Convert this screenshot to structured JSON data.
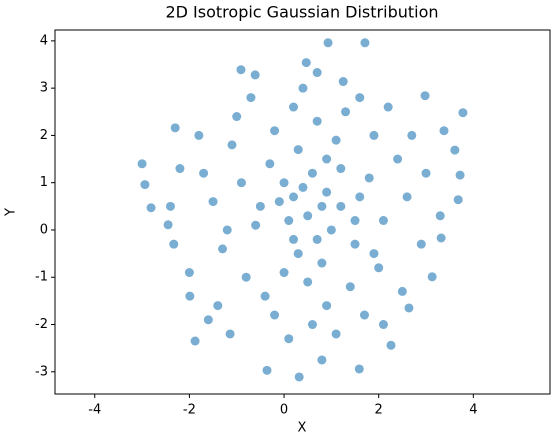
{
  "chart_data": {
    "type": "scatter",
    "title": "2D Isotropic Gaussian Distribution",
    "x_label": "X",
    "y_label": "Y",
    "color": "#1f77b4",
    "alpha": 0.6,
    "grid": false,
    "xlim": [
      -4.84,
      5.62
    ],
    "ylim": [
      -3.47,
      4.23
    ],
    "xticks": [
      -4,
      -2,
      0,
      2,
      4
    ],
    "yticks": [
      -3,
      -2,
      -1,
      0,
      1,
      2,
      3,
      4
    ],
    "x": [
      0.93,
      1.71,
      0.47,
      -0.91,
      -0.61,
      0.7,
      1.25,
      2.98,
      3.78,
      -3.0,
      -2.94,
      -2.81,
      -2.45,
      -2.33,
      -2.3,
      3.38,
      3.61,
      3.72,
      3.68,
      3.32,
      3.13,
      -1.88,
      -0.36,
      0.32,
      0.8,
      1.59,
      2.26,
      2.64,
      -1.99,
      -1.14,
      0.5,
      0.9,
      0.2,
      1.2,
      0.6,
      -0.1,
      1.5,
      0.8,
      0.3,
      1.8,
      -0.6,
      0.0,
      1.1,
      2.1,
      -0.9,
      0.7,
      1.4,
      -0.4,
      2.4,
      -1.3,
      0.4,
      1.0,
      0.1,
      1.6,
      -0.3,
      0.9,
      2.0,
      -1.1,
      0.2,
      1.3,
      -1.5,
      2.6,
      0.6,
      -0.8,
      1.9,
      -1.7,
      2.9,
      0.5,
      -0.2,
      1.7,
      -2.0,
      2.2,
      -1.0,
      0.0,
      1.2,
      0.8,
      0.3,
      -0.5,
      1.5,
      0.7,
      2.5,
      -1.8,
      -2.2,
      3.0,
      -1.4,
      0.1,
      1.1,
      2.7,
      -0.7,
      1.6,
      -2.4,
      3.3,
      -1.6,
      2.1,
      0.4,
      -0.2,
      1.9,
      -1.2,
      0.9,
      0.2
    ],
    "y": [
      3.96,
      3.96,
      3.54,
      3.39,
      3.28,
      3.33,
      3.14,
      2.84,
      2.48,
      1.4,
      0.96,
      0.47,
      0.11,
      -0.3,
      2.16,
      2.1,
      1.69,
      1.16,
      0.64,
      -0.17,
      -0.99,
      -2.35,
      -2.97,
      -3.11,
      -2.75,
      -2.94,
      -2.44,
      -1.65,
      -1.4,
      -2.2,
      0.3,
      0.8,
      -0.2,
      0.5,
      1.2,
      0.6,
      -0.3,
      -0.7,
      1.7,
      1.1,
      0.1,
      -0.9,
      1.9,
      0.2,
      1.0,
      2.3,
      -1.2,
      -1.4,
      1.5,
      -0.4,
      0.9,
      0.0,
      0.2,
      0.7,
      1.4,
      -1.6,
      -0.8,
      1.8,
      2.6,
      2.5,
      0.6,
      0.7,
      -2.0,
      -1.0,
      2.0,
      1.2,
      -0.3,
      -1.1,
      2.1,
      -1.8,
      -0.9,
      2.6,
      2.4,
      1.0,
      1.3,
      0.5,
      -0.5,
      0.5,
      0.2,
      -0.2,
      -1.3,
      2.0,
      1.3,
      1.2,
      -1.6,
      -2.3,
      -2.2,
      2.0,
      2.8,
      2.8,
      0.5,
      0.3,
      -1.9,
      -2.0,
      3.0,
      -1.8,
      -0.5,
      0.0,
      1.5,
      0.7
    ]
  }
}
